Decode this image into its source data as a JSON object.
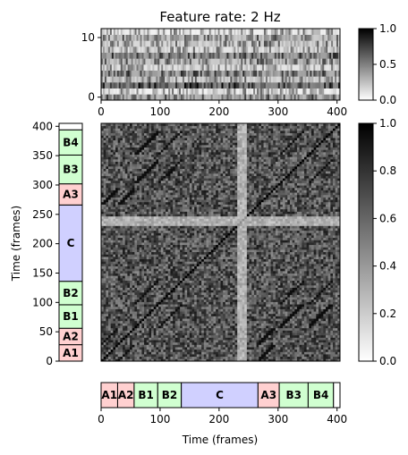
{
  "chart_data": {
    "title": "Feature rate: 2 Hz",
    "feature_panel": {
      "type": "heatmap",
      "xlim": [
        0,
        405
      ],
      "ylim": [
        -0.5,
        11.5
      ],
      "xticks": [
        0,
        100,
        200,
        300,
        400
      ],
      "yticks": [
        0,
        10
      ],
      "rows": 12,
      "colorbar": {
        "vmin": 0.0,
        "vmax": 1.0,
        "ticks": [
          "0.0",
          "0.5",
          "1.0"
        ]
      }
    },
    "ssm_panel": {
      "type": "heatmap",
      "xlim": [
        0,
        405
      ],
      "ylim": [
        0,
        405
      ],
      "xticks": [
        0,
        100,
        200,
        300,
        400
      ],
      "yticks": [
        0,
        50,
        100,
        150,
        200,
        250,
        300,
        350,
        400
      ],
      "xlabel": "Time (frames)",
      "ylabel": "Time (frames)",
      "colorbar": {
        "vmin": 0.0,
        "vmax": 1.0,
        "ticks": [
          "0.0",
          "0.2",
          "0.4",
          "0.6",
          "0.8",
          "1.0"
        ]
      }
    },
    "segments": [
      {
        "label": "A1",
        "start": 0,
        "end": 28,
        "color": "#ffd0d0"
      },
      {
        "label": "A2",
        "start": 28,
        "end": 56,
        "color": "#ffd0d0"
      },
      {
        "label": "B1",
        "start": 56,
        "end": 96,
        "color": "#d0ffd0"
      },
      {
        "label": "B2",
        "start": 96,
        "end": 136,
        "color": "#d0ffd0"
      },
      {
        "label": "C",
        "start": 136,
        "end": 266,
        "color": "#d0d0ff"
      },
      {
        "label": "A3",
        "start": 266,
        "end": 302,
        "color": "#ffd0d0"
      },
      {
        "label": "B3",
        "start": 302,
        "end": 351,
        "color": "#d0ffd0"
      },
      {
        "label": "B4",
        "start": 351,
        "end": 394,
        "color": "#d0ffd0"
      },
      {
        "label": "",
        "start": 394,
        "end": 405,
        "color": "#ffffff"
      }
    ]
  }
}
